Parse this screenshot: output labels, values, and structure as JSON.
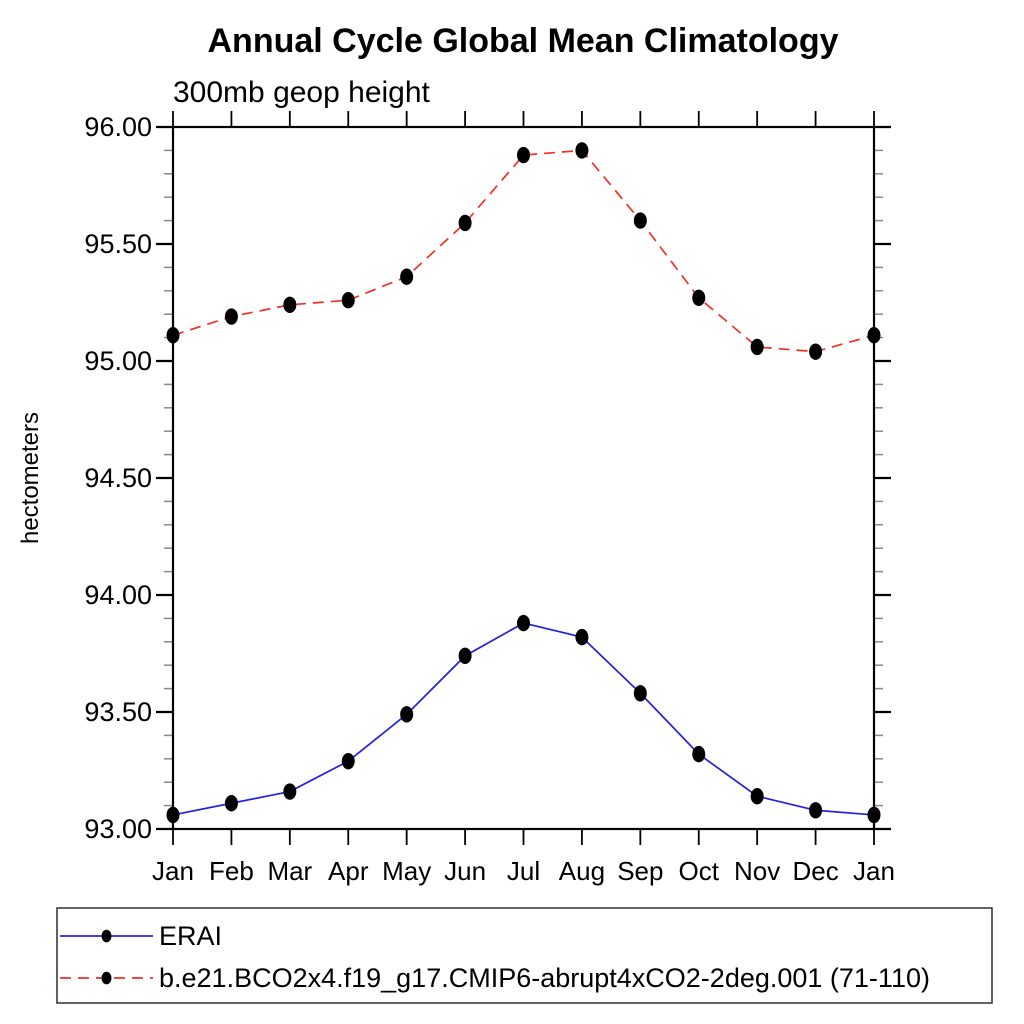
{
  "window": {
    "background": "#ffffff"
  },
  "chart_data": {
    "type": "line",
    "title": "Annual Cycle Global Mean Climatology",
    "subtitle": "300mb geop height",
    "ylabel": "hectometers",
    "xlabel": "",
    "categories": [
      "Jan",
      "Feb",
      "Mar",
      "Apr",
      "May",
      "Jun",
      "Jul",
      "Aug",
      "Sep",
      "Oct",
      "Nov",
      "Dec",
      "Jan"
    ],
    "series": [
      {
        "name": "ERAI",
        "color": "#2222dd",
        "line_style": "solid",
        "marker": "black-filled-dot",
        "values": [
          93.06,
          93.11,
          93.16,
          93.29,
          93.49,
          93.74,
          93.88,
          93.82,
          93.58,
          93.32,
          93.14,
          93.08,
          93.06
        ]
      },
      {
        "name": "b.e21.BCO2x4.f19_g17.CMIP6-abrupt4xCO2-2deg.001 (71-110)",
        "color": "#f13026",
        "line_style": "dashed",
        "marker": "black-filled-dot",
        "values": [
          95.11,
          95.19,
          95.24,
          95.26,
          95.36,
          95.59,
          95.88,
          95.9,
          95.6,
          95.27,
          95.06,
          95.04,
          95.11
        ]
      }
    ],
    "ylim": [
      93.0,
      96.0
    ],
    "ytick_major_step": 0.5,
    "ytick_minor_step": 0.1,
    "ytick_labels": [
      "93.00",
      "93.50",
      "94.00",
      "94.50",
      "95.00",
      "95.50",
      "96.00"
    ],
    "grid": false,
    "legend_position": "bottom-left-box",
    "marker_color": "#000000",
    "axis_color": "#000000",
    "minor_tick_color": "#8a8a8a"
  },
  "legend": {
    "items": [
      {
        "label": "ERAI"
      },
      {
        "label": "b.e21.BCO2x4.f19_g17.CMIP6-abrupt4xCO2-2deg.001 (71-110)"
      }
    ]
  }
}
